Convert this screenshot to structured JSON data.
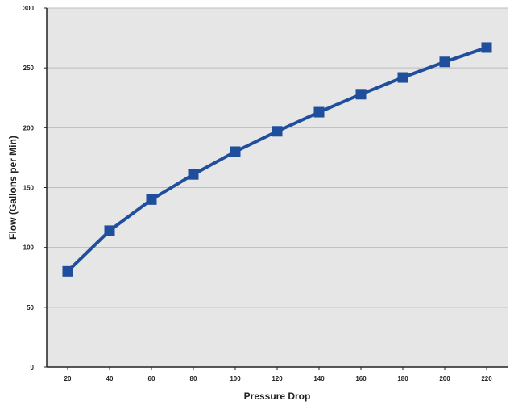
{
  "chart_data": {
    "type": "line",
    "title": "",
    "xlabel": "Pressure Drop",
    "ylabel": "Flow (Gallons per Min)",
    "x": [
      20,
      40,
      60,
      80,
      100,
      120,
      140,
      160,
      180,
      200,
      220
    ],
    "series": [
      {
        "values": [
          80,
          114,
          140,
          161,
          180,
          197,
          213,
          228,
          242,
          255,
          267
        ]
      }
    ],
    "xlim": [
      10,
      230
    ],
    "ylim": [
      0,
      300
    ],
    "xticks": [
      "20",
      "40",
      "60",
      "80",
      "100",
      "120",
      "140",
      "160",
      "180",
      "200",
      "220"
    ],
    "yticks": [
      "0",
      "50",
      "100",
      "150",
      "200",
      "250",
      "300"
    ],
    "grid": true,
    "marker": "square",
    "colors": {
      "line": "#1f4e9c",
      "marker": "#1f4e9c",
      "plot_background": "#e6e6e6",
      "gridline": "#bdbdbd",
      "axis": "#222222"
    }
  }
}
